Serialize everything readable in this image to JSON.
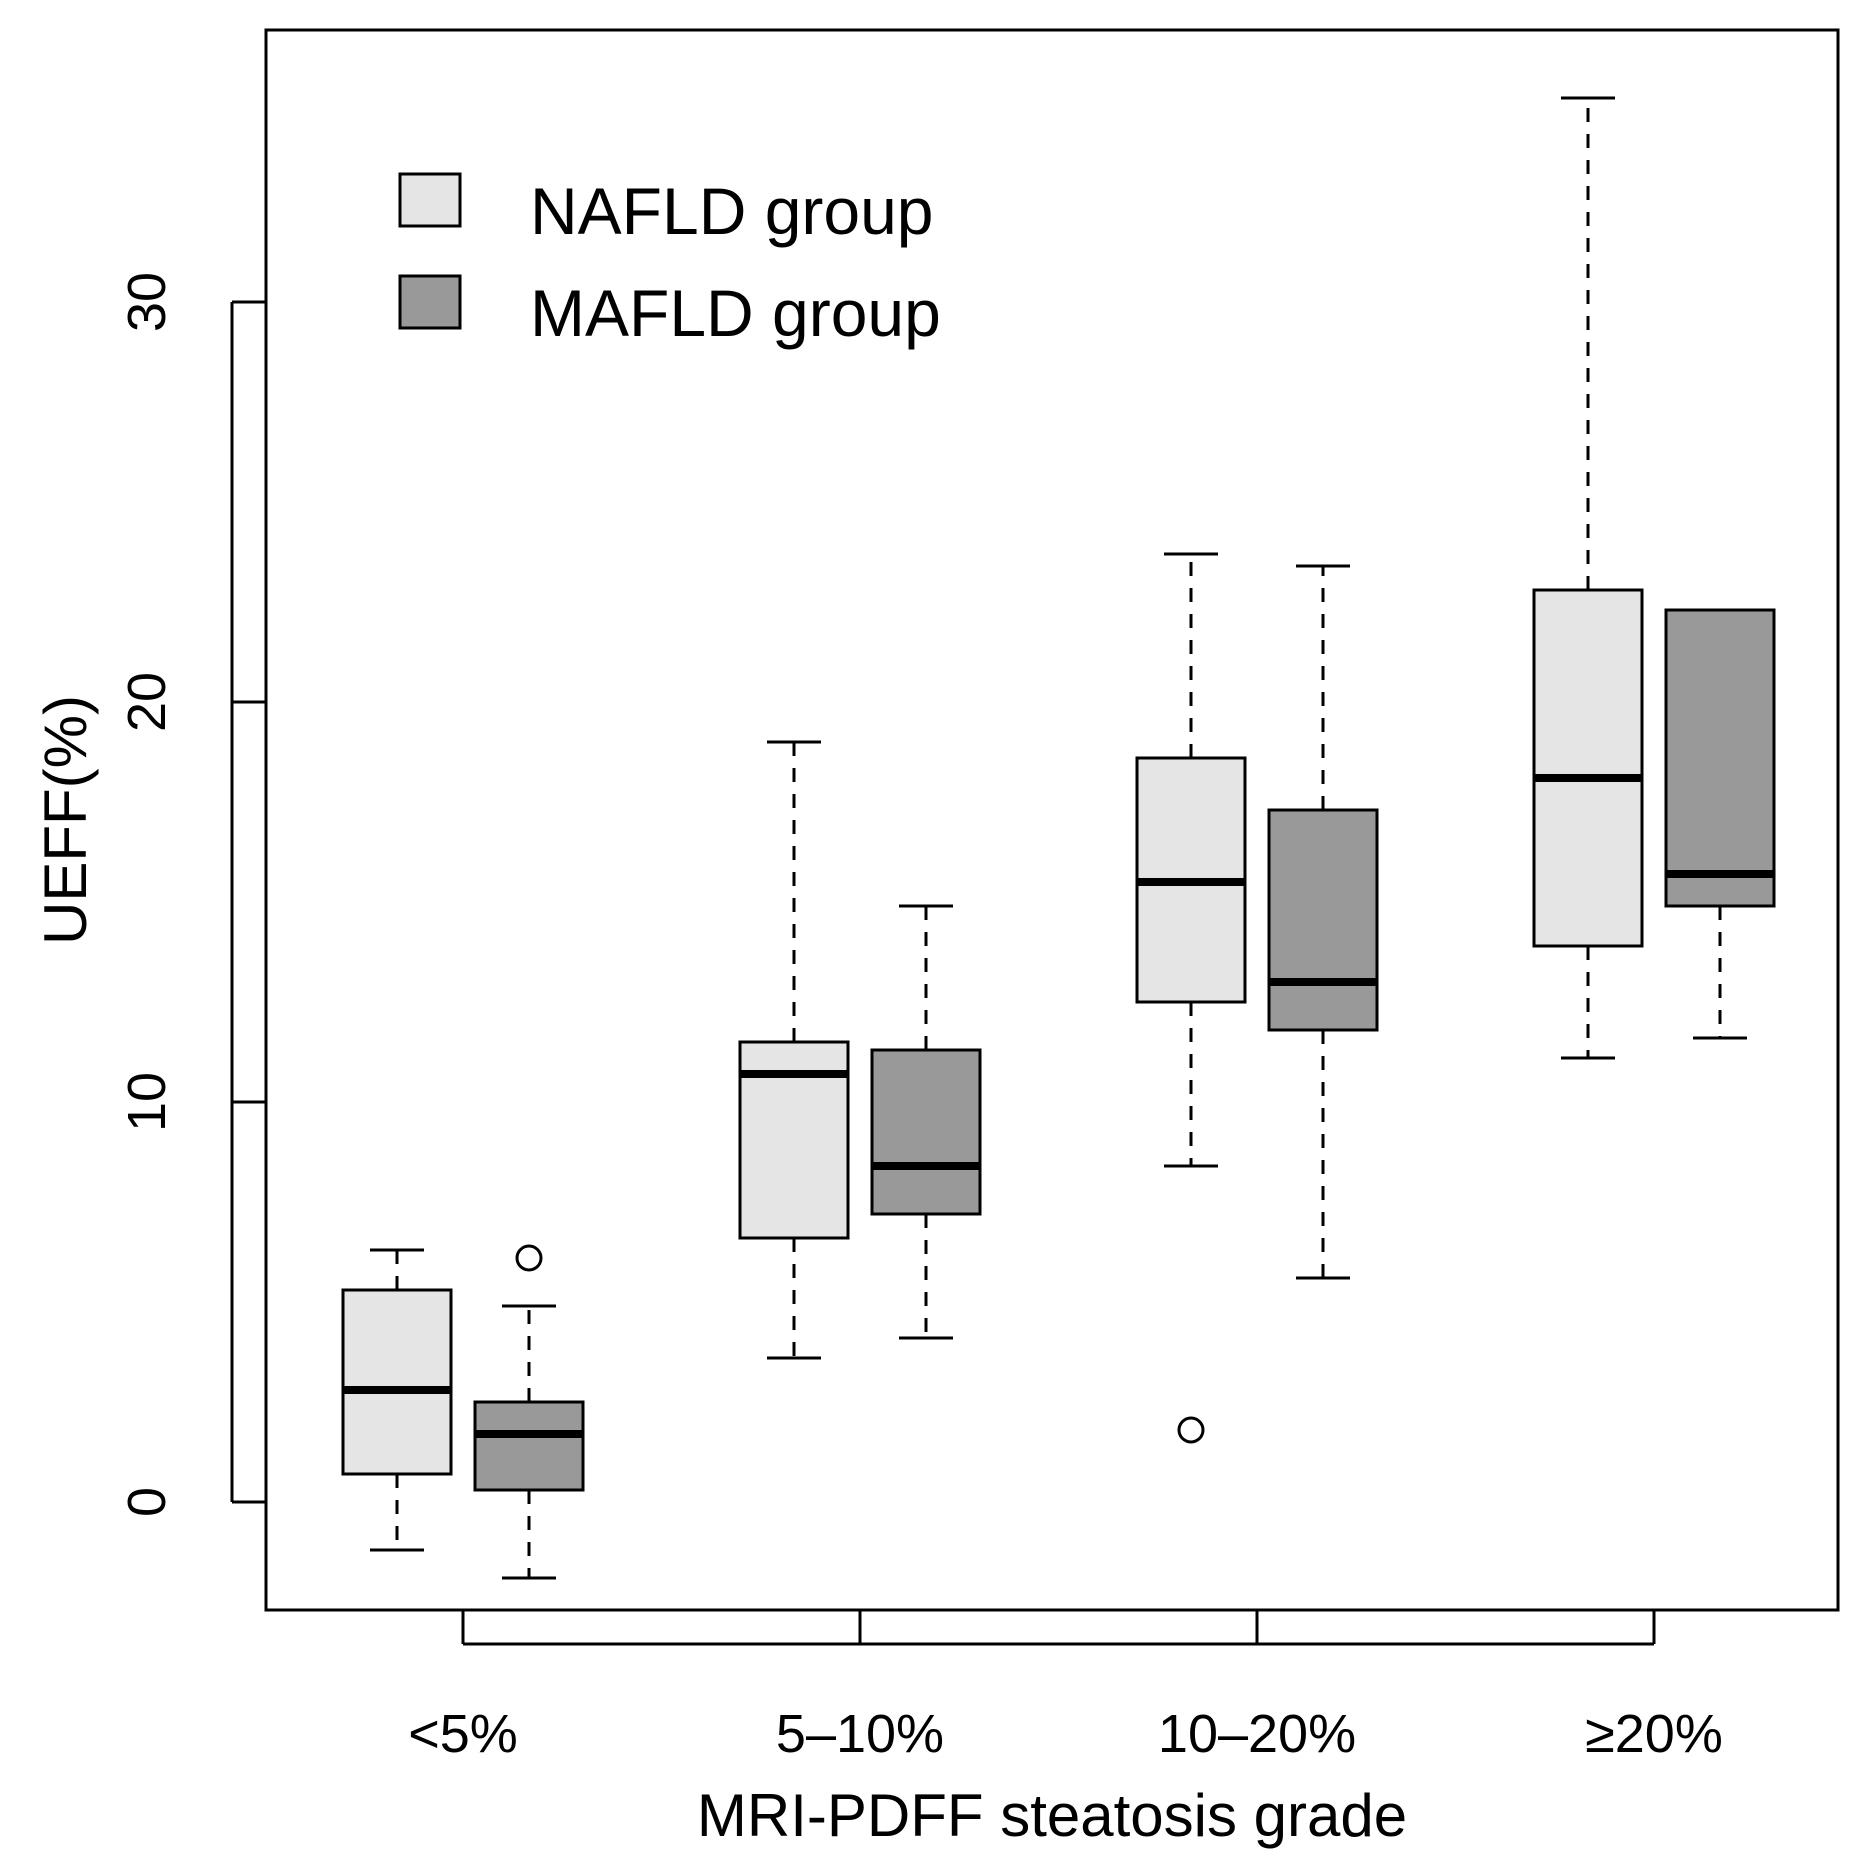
{
  "chart_data": {
    "type": "boxplot",
    "xlabel": "MRI-PDFF steatosis grade",
    "ylabel": "UEFF(%)",
    "categories": [
      "<5%",
      "5–10%",
      "10–20%",
      "≥20%"
    ],
    "y_ticks": [
      0,
      10,
      20,
      30
    ],
    "ylim": [
      -2.7,
      36.8
    ],
    "grid": false,
    "legend_position": "top-left",
    "series": [
      {
        "name": "NAFLD group",
        "color": "#e5e5e5",
        "boxes": [
          {
            "whisker_low": -1.2,
            "q1": 0.7,
            "median": 2.8,
            "q3": 5.3,
            "whisker_high": 6.3,
            "outliers": []
          },
          {
            "whisker_low": 3.6,
            "q1": 6.6,
            "median": 10.7,
            "q3": 11.5,
            "whisker_high": 19.0,
            "outliers": []
          },
          {
            "whisker_low": 8.4,
            "q1": 12.5,
            "median": 15.5,
            "q3": 18.6,
            "whisker_high": 23.7,
            "outliers": [
              1.8
            ]
          },
          {
            "whisker_low": 11.1,
            "q1": 13.9,
            "median": 18.1,
            "q3": 22.8,
            "whisker_high": 35.1,
            "outliers": []
          }
        ]
      },
      {
        "name": "MAFLD group",
        "color": "#999999",
        "boxes": [
          {
            "whisker_low": -1.9,
            "q1": 0.3,
            "median": 1.7,
            "q3": 2.5,
            "whisker_high": 4.9,
            "outliers": [
              6.1
            ]
          },
          {
            "whisker_low": 4.1,
            "q1": 7.2,
            "median": 8.4,
            "q3": 11.3,
            "whisker_high": 14.9,
            "outliers": []
          },
          {
            "whisker_low": 5.6,
            "q1": 11.8,
            "median": 13.0,
            "q3": 17.3,
            "whisker_high": 23.4,
            "outliers": []
          },
          {
            "whisker_low": 11.6,
            "q1": 14.9,
            "median": 15.7,
            "q3": 22.3,
            "whisker_high": 22.3,
            "outliers": []
          }
        ]
      }
    ]
  }
}
